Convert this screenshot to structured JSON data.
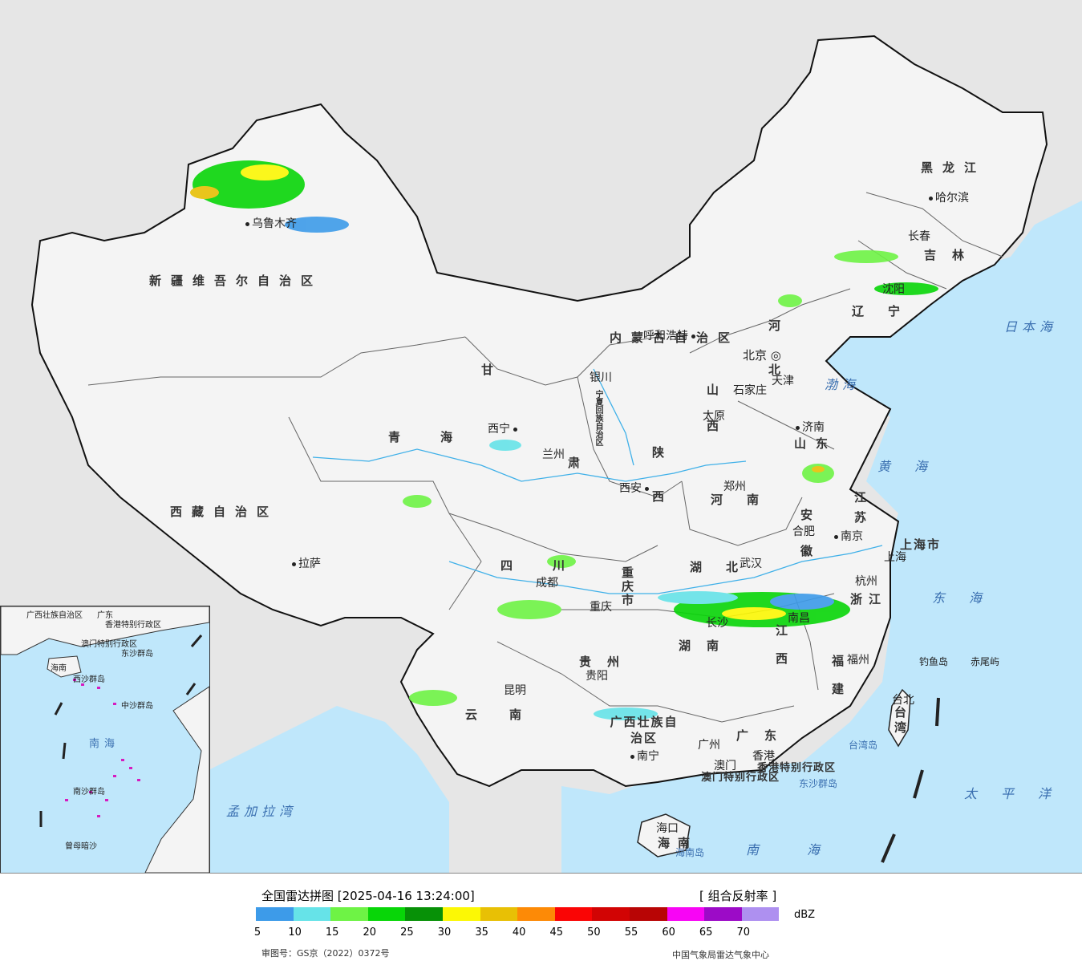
{
  "legend": {
    "title": "全国雷达拼图 [2025-04-16 13:24:00]",
    "product": "[ 组合反射率 ]",
    "unit": "dBZ",
    "colors": [
      "#3d9be9",
      "#66e3e8",
      "#6ef345",
      "#08d608",
      "#079107",
      "#fcf805",
      "#e8c005",
      "#fd8a06",
      "#fa0505",
      "#d20404",
      "#b80505",
      "#f805f5",
      "#9c0bc7",
      "#ae90f0"
    ],
    "ticks": [
      "5",
      "10",
      "15",
      "20",
      "25",
      "30",
      "35",
      "40",
      "45",
      "50",
      "55",
      "60",
      "65",
      "70"
    ],
    "approval": "审图号：GS京（2022）0372号",
    "source": "中国气象局雷达气象中心"
  },
  "provinces": [
    {
      "name": "新疆维吾尔自治区"
    },
    {
      "name": "西藏自治区"
    },
    {
      "name": "青海"
    },
    {
      "name": "甘"
    },
    {
      "name": "肃"
    },
    {
      "name": "内蒙古自治区"
    },
    {
      "name": "黑龙江"
    },
    {
      "name": "吉林"
    },
    {
      "name": "辽宁"
    },
    {
      "name": "河北"
    },
    {
      "name": "山西"
    },
    {
      "name": "山东"
    },
    {
      "name": "陕西"
    },
    {
      "name": "河南"
    },
    {
      "name": "江苏"
    },
    {
      "name": "安徽"
    },
    {
      "name": "四川"
    },
    {
      "name": "重庆市"
    },
    {
      "name": "湖北"
    },
    {
      "name": "浙江"
    },
    {
      "name": "湖南"
    },
    {
      "name": "江西"
    },
    {
      "name": "福建"
    },
    {
      "name": "贵州"
    },
    {
      "name": "云南"
    },
    {
      "name": "广西壮族自治区"
    },
    {
      "name": "广东"
    },
    {
      "name": "海南"
    },
    {
      "name": "台湾"
    },
    {
      "name": "上海市"
    },
    {
      "name": "宁夏回族自治区"
    },
    {
      "name": "香港特别行政区"
    },
    {
      "name": "澳门特别行政区"
    }
  ],
  "cities": [
    "乌鲁木齐",
    "哈尔滨",
    "长春",
    "沈阳",
    "呼和浩特",
    "北京",
    "天津",
    "石家庄",
    "太原",
    "济南",
    "银川",
    "西宁",
    "兰州",
    "西安",
    "郑州",
    "合肥",
    "南京",
    "上海",
    "杭州",
    "武汉",
    "成都",
    "重庆",
    "长沙",
    "南昌",
    "福州",
    "台北",
    "贵阳",
    "昆明",
    "南宁",
    "广州",
    "香港",
    "澳门",
    "海口",
    "拉萨"
  ],
  "seas": [
    "渤海",
    "黄海",
    "东海",
    "日本海",
    "太平洋",
    "南海",
    "孟加拉湾"
  ],
  "islands": [
    "钓鱼岛",
    "赤尾屿",
    "台湾岛",
    "东沙群岛",
    "海南岛"
  ],
  "inset": {
    "labels": [
      "广西壮族自治区",
      "广东",
      "海南",
      "南海",
      "东沙群岛",
      "中沙群岛",
      "西沙群岛",
      "南沙群岛",
      "曾母暗沙",
      "香港特别行政区",
      "澳门特别行政区"
    ]
  }
}
